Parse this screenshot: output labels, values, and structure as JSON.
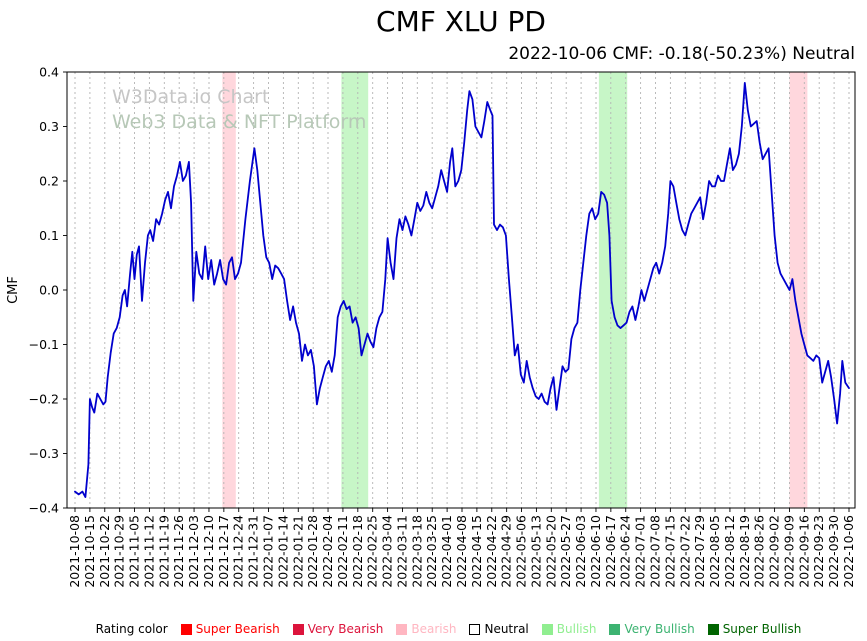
{
  "watermark": {
    "line1": "W3Data.io Chart",
    "line2": "Web3 Data & NFT Platform"
  },
  "chart_data": {
    "type": "line",
    "title": "CMF XLU PD",
    "subtitle": "2022-10-06 CMF: -0.18(-50.23%) Neutral",
    "ylabel": "CMF",
    "xlabel": "",
    "ylim": [
      -0.4,
      0.4
    ],
    "yticks": [
      0.4,
      0.3,
      0.2,
      0.1,
      0.0,
      -0.1,
      -0.2,
      -0.3,
      -0.4
    ],
    "grid": "vertical-dashed",
    "line_color": "#0000cd",
    "x_tick_labels": [
      "2021-10-08",
      "2021-10-15",
      "2021-10-22",
      "2021-10-29",
      "2021-11-05",
      "2021-11-12",
      "2021-11-19",
      "2021-11-26",
      "2021-12-03",
      "2021-12-10",
      "2021-12-17",
      "2021-12-24",
      "2021-12-31",
      "2022-01-07",
      "2022-01-14",
      "2022-01-21",
      "2022-01-28",
      "2022-02-04",
      "2022-02-11",
      "2022-02-18",
      "2022-02-25",
      "2022-03-04",
      "2022-03-11",
      "2022-03-18",
      "2022-03-25",
      "2022-04-01",
      "2022-04-08",
      "2022-04-15",
      "2022-04-22",
      "2022-04-29",
      "2022-05-06",
      "2022-05-13",
      "2022-05-20",
      "2022-05-27",
      "2022-06-03",
      "2022-06-10",
      "2022-06-17",
      "2022-06-24",
      "2022-07-01",
      "2022-07-08",
      "2022-07-15",
      "2022-07-22",
      "2022-07-29",
      "2022-08-05",
      "2022-08-12",
      "2022-08-19",
      "2022-08-26",
      "2022-09-02",
      "2022-09-09",
      "2022-09-16",
      "2022-09-23",
      "2022-09-30",
      "2022-10-06"
    ],
    "bands": [
      {
        "from": 9.9,
        "to": 10.8,
        "color": "#ffb6c1",
        "opacity": 0.55,
        "rating": "Bearish"
      },
      {
        "from": 17.9,
        "to": 19.7,
        "color": "#90ee90",
        "opacity": 0.5,
        "rating": "Bullish"
      },
      {
        "from": 35.2,
        "to": 37.1,
        "color": "#90ee90",
        "opacity": 0.5,
        "rating": "Bullish"
      },
      {
        "from": 48.0,
        "to": 49.2,
        "color": "#ffb6c1",
        "opacity": 0.55,
        "rating": "Bearish"
      }
    ],
    "series": [
      {
        "name": "CMF",
        "points": [
          [
            0,
            -0.37
          ],
          [
            0.25,
            -0.375
          ],
          [
            0.5,
            -0.37
          ],
          [
            0.7,
            -0.38
          ],
          [
            0.9,
            -0.32
          ],
          [
            1.0,
            -0.2
          ],
          [
            1.15,
            -0.215
          ],
          [
            1.3,
            -0.225
          ],
          [
            1.5,
            -0.19
          ],
          [
            1.7,
            -0.2
          ],
          [
            1.9,
            -0.21
          ],
          [
            2.05,
            -0.205
          ],
          [
            2.2,
            -0.16
          ],
          [
            2.4,
            -0.115
          ],
          [
            2.6,
            -0.08
          ],
          [
            2.8,
            -0.07
          ],
          [
            3.0,
            -0.05
          ],
          [
            3.2,
            -0.01
          ],
          [
            3.35,
            0.0
          ],
          [
            3.5,
            -0.03
          ],
          [
            3.7,
            0.03
          ],
          [
            3.85,
            0.07
          ],
          [
            4.0,
            0.02
          ],
          [
            4.15,
            0.065
          ],
          [
            4.3,
            0.08
          ],
          [
            4.5,
            -0.02
          ],
          [
            4.7,
            0.05
          ],
          [
            4.9,
            0.1
          ],
          [
            5.05,
            0.11
          ],
          [
            5.25,
            0.09
          ],
          [
            5.45,
            0.13
          ],
          [
            5.65,
            0.12
          ],
          [
            5.85,
            0.14
          ],
          [
            6.05,
            0.165
          ],
          [
            6.25,
            0.18
          ],
          [
            6.45,
            0.15
          ],
          [
            6.65,
            0.19
          ],
          [
            6.85,
            0.21
          ],
          [
            7.05,
            0.235
          ],
          [
            7.25,
            0.2
          ],
          [
            7.45,
            0.21
          ],
          [
            7.65,
            0.235
          ],
          [
            7.8,
            0.16
          ],
          [
            7.95,
            -0.02
          ],
          [
            8.15,
            0.07
          ],
          [
            8.35,
            0.03
          ],
          [
            8.55,
            0.02
          ],
          [
            8.75,
            0.08
          ],
          [
            8.95,
            0.02
          ],
          [
            9.15,
            0.055
          ],
          [
            9.35,
            0.01
          ],
          [
            9.55,
            0.03
          ],
          [
            9.75,
            0.055
          ],
          [
            9.95,
            0.02
          ],
          [
            10.15,
            0.01
          ],
          [
            10.35,
            0.05
          ],
          [
            10.55,
            0.06
          ],
          [
            10.75,
            0.02
          ],
          [
            10.95,
            0.03
          ],
          [
            11.15,
            0.05
          ],
          [
            11.45,
            0.13
          ],
          [
            11.75,
            0.2
          ],
          [
            12.05,
            0.26
          ],
          [
            12.25,
            0.22
          ],
          [
            12.45,
            0.16
          ],
          [
            12.65,
            0.1
          ],
          [
            12.85,
            0.06
          ],
          [
            13.05,
            0.05
          ],
          [
            13.25,
            0.02
          ],
          [
            13.45,
            0.045
          ],
          [
            13.65,
            0.04
          ],
          [
            13.85,
            0.03
          ],
          [
            14.05,
            0.02
          ],
          [
            14.25,
            -0.02
          ],
          [
            14.45,
            -0.055
          ],
          [
            14.65,
            -0.03
          ],
          [
            14.85,
            -0.06
          ],
          [
            15.05,
            -0.08
          ],
          [
            15.25,
            -0.13
          ],
          [
            15.45,
            -0.1
          ],
          [
            15.65,
            -0.12
          ],
          [
            15.85,
            -0.11
          ],
          [
            16.05,
            -0.14
          ],
          [
            16.25,
            -0.21
          ],
          [
            16.45,
            -0.18
          ],
          [
            16.65,
            -0.16
          ],
          [
            16.85,
            -0.14
          ],
          [
            17.05,
            -0.13
          ],
          [
            17.25,
            -0.15
          ],
          [
            17.45,
            -0.12
          ],
          [
            17.65,
            -0.05
          ],
          [
            17.85,
            -0.03
          ],
          [
            18.05,
            -0.02
          ],
          [
            18.25,
            -0.035
          ],
          [
            18.45,
            -0.03
          ],
          [
            18.65,
            -0.06
          ],
          [
            18.85,
            -0.05
          ],
          [
            19.05,
            -0.07
          ],
          [
            19.25,
            -0.12
          ],
          [
            19.45,
            -0.1
          ],
          [
            19.65,
            -0.08
          ],
          [
            19.85,
            -0.095
          ],
          [
            20.05,
            -0.105
          ],
          [
            20.25,
            -0.07
          ],
          [
            20.45,
            -0.05
          ],
          [
            20.65,
            -0.04
          ],
          [
            20.85,
            0.02
          ],
          [
            21.0,
            0.095
          ],
          [
            21.2,
            0.05
          ],
          [
            21.4,
            0.02
          ],
          [
            21.6,
            0.095
          ],
          [
            21.8,
            0.13
          ],
          [
            22.0,
            0.11
          ],
          [
            22.2,
            0.135
          ],
          [
            22.4,
            0.12
          ],
          [
            22.6,
            0.1
          ],
          [
            22.8,
            0.13
          ],
          [
            23.0,
            0.16
          ],
          [
            23.2,
            0.145
          ],
          [
            23.4,
            0.155
          ],
          [
            23.6,
            0.18
          ],
          [
            23.8,
            0.16
          ],
          [
            24.0,
            0.15
          ],
          [
            24.2,
            0.17
          ],
          [
            24.4,
            0.19
          ],
          [
            24.6,
            0.22
          ],
          [
            24.8,
            0.2
          ],
          [
            25.0,
            0.18
          ],
          [
            25.2,
            0.235
          ],
          [
            25.35,
            0.26
          ],
          [
            25.55,
            0.19
          ],
          [
            25.75,
            0.2
          ],
          [
            25.95,
            0.22
          ],
          [
            26.15,
            0.27
          ],
          [
            26.35,
            0.33
          ],
          [
            26.5,
            0.365
          ],
          [
            26.7,
            0.35
          ],
          [
            26.9,
            0.3
          ],
          [
            27.1,
            0.29
          ],
          [
            27.3,
            0.28
          ],
          [
            27.5,
            0.31
          ],
          [
            27.7,
            0.345
          ],
          [
            27.9,
            0.33
          ],
          [
            28.05,
            0.32
          ],
          [
            28.15,
            0.12
          ],
          [
            28.35,
            0.11
          ],
          [
            28.55,
            0.12
          ],
          [
            28.75,
            0.115
          ],
          [
            28.95,
            0.1
          ],
          [
            29.15,
            0.02
          ],
          [
            29.35,
            -0.05
          ],
          [
            29.55,
            -0.12
          ],
          [
            29.75,
            -0.1
          ],
          [
            29.95,
            -0.155
          ],
          [
            30.15,
            -0.17
          ],
          [
            30.35,
            -0.13
          ],
          [
            30.55,
            -0.16
          ],
          [
            30.75,
            -0.18
          ],
          [
            30.95,
            -0.195
          ],
          [
            31.15,
            -0.2
          ],
          [
            31.35,
            -0.19
          ],
          [
            31.55,
            -0.205
          ],
          [
            31.75,
            -0.21
          ],
          [
            31.95,
            -0.18
          ],
          [
            32.15,
            -0.16
          ],
          [
            32.35,
            -0.22
          ],
          [
            32.55,
            -0.18
          ],
          [
            32.75,
            -0.14
          ],
          [
            32.95,
            -0.15
          ],
          [
            33.15,
            -0.145
          ],
          [
            33.35,
            -0.09
          ],
          [
            33.55,
            -0.07
          ],
          [
            33.75,
            -0.06
          ],
          [
            33.95,
            0.0
          ],
          [
            34.15,
            0.05
          ],
          [
            34.35,
            0.1
          ],
          [
            34.55,
            0.14
          ],
          [
            34.75,
            0.15
          ],
          [
            34.95,
            0.13
          ],
          [
            35.15,
            0.14
          ],
          [
            35.35,
            0.18
          ],
          [
            35.55,
            0.175
          ],
          [
            35.75,
            0.16
          ],
          [
            35.9,
            0.1
          ],
          [
            36.05,
            -0.02
          ],
          [
            36.25,
            -0.05
          ],
          [
            36.45,
            -0.065
          ],
          [
            36.65,
            -0.07
          ],
          [
            36.85,
            -0.065
          ],
          [
            37.05,
            -0.06
          ],
          [
            37.25,
            -0.04
          ],
          [
            37.45,
            -0.03
          ],
          [
            37.65,
            -0.055
          ],
          [
            37.85,
            -0.03
          ],
          [
            38.05,
            0.0
          ],
          [
            38.25,
            -0.02
          ],
          [
            38.45,
            0.0
          ],
          [
            38.65,
            0.02
          ],
          [
            38.85,
            0.04
          ],
          [
            39.05,
            0.05
          ],
          [
            39.25,
            0.03
          ],
          [
            39.45,
            0.05
          ],
          [
            39.65,
            0.08
          ],
          [
            39.85,
            0.14
          ],
          [
            40.0,
            0.2
          ],
          [
            40.2,
            0.19
          ],
          [
            40.4,
            0.16
          ],
          [
            40.6,
            0.13
          ],
          [
            40.8,
            0.11
          ],
          [
            41.0,
            0.1
          ],
          [
            41.2,
            0.12
          ],
          [
            41.4,
            0.14
          ],
          [
            41.6,
            0.15
          ],
          [
            41.8,
            0.16
          ],
          [
            42.0,
            0.17
          ],
          [
            42.2,
            0.13
          ],
          [
            42.4,
            0.16
          ],
          [
            42.6,
            0.2
          ],
          [
            42.8,
            0.19
          ],
          [
            43.0,
            0.19
          ],
          [
            43.2,
            0.21
          ],
          [
            43.4,
            0.2
          ],
          [
            43.6,
            0.2
          ],
          [
            43.8,
            0.23
          ],
          [
            44.0,
            0.26
          ],
          [
            44.2,
            0.22
          ],
          [
            44.4,
            0.23
          ],
          [
            44.6,
            0.25
          ],
          [
            44.8,
            0.3
          ],
          [
            45.0,
            0.38
          ],
          [
            45.2,
            0.33
          ],
          [
            45.4,
            0.3
          ],
          [
            45.6,
            0.305
          ],
          [
            45.8,
            0.31
          ],
          [
            46.0,
            0.27
          ],
          [
            46.2,
            0.24
          ],
          [
            46.4,
            0.25
          ],
          [
            46.6,
            0.26
          ],
          [
            46.8,
            0.18
          ],
          [
            47.0,
            0.1
          ],
          [
            47.2,
            0.05
          ],
          [
            47.4,
            0.03
          ],
          [
            47.6,
            0.02
          ],
          [
            47.8,
            0.01
          ],
          [
            48.0,
            0.0
          ],
          [
            48.2,
            0.02
          ],
          [
            48.4,
            -0.02
          ],
          [
            48.6,
            -0.05
          ],
          [
            48.8,
            -0.08
          ],
          [
            49.0,
            -0.1
          ],
          [
            49.2,
            -0.12
          ],
          [
            49.4,
            -0.125
          ],
          [
            49.6,
            -0.13
          ],
          [
            49.8,
            -0.12
          ],
          [
            50.0,
            -0.125
          ],
          [
            50.2,
            -0.17
          ],
          [
            50.4,
            -0.15
          ],
          [
            50.6,
            -0.13
          ],
          [
            50.8,
            -0.16
          ],
          [
            51.0,
            -0.2
          ],
          [
            51.2,
            -0.245
          ],
          [
            51.4,
            -0.19
          ],
          [
            51.55,
            -0.13
          ],
          [
            51.75,
            -0.17
          ],
          [
            52.0,
            -0.18
          ]
        ]
      }
    ]
  },
  "legend": {
    "label": "Rating color",
    "items": [
      {
        "label": "Super Bearish",
        "color": "#ff0000",
        "text_color": "#ff0000"
      },
      {
        "label": "Very Bearish",
        "color": "#dc143c",
        "text_color": "#dc143c"
      },
      {
        "label": "Bearish",
        "color": "#ffb6c1",
        "text_color": "#ffb6c1"
      },
      {
        "label": "Neutral",
        "color": "#ffffff",
        "text_color": "#000000"
      },
      {
        "label": "Bullish",
        "color": "#90ee90",
        "text_color": "#90ee90"
      },
      {
        "label": "Very Bullish",
        "color": "#3cb371",
        "text_color": "#3cb371"
      },
      {
        "label": "Super Bullish",
        "color": "#006400",
        "text_color": "#006400"
      }
    ]
  }
}
